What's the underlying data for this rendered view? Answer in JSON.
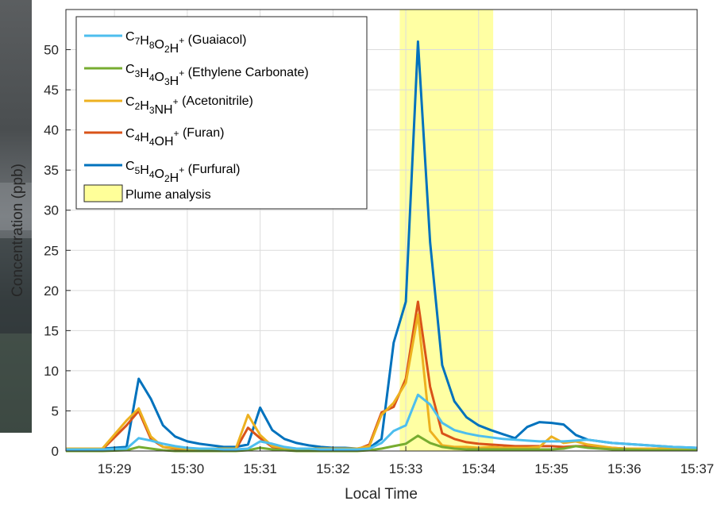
{
  "chart_data": {
    "type": "line",
    "title": "",
    "xlabel": "Local Time",
    "ylabel": "Concentration (ppb)",
    "xlim": [
      "15:28:20",
      "15:37:00"
    ],
    "ylim": [
      0,
      55
    ],
    "x_ticks": [
      "15:29",
      "15:30",
      "15:31",
      "15:32",
      "15:33",
      "15:34",
      "15:35",
      "15:36",
      "15:37"
    ],
    "y_ticks": [
      0,
      5,
      10,
      15,
      20,
      25,
      30,
      35,
      40,
      45,
      50
    ],
    "grid": true,
    "legend_position": "top-left",
    "shaded_region": {
      "label": "Plume analysis",
      "x_start": "15:32:55",
      "x_end": "15:34:12",
      "color": "#ffff99"
    },
    "x": [
      "15:28:20",
      "15:28:50",
      "15:29:10",
      "15:29:20",
      "15:29:30",
      "15:29:40",
      "15:29:50",
      "15:30:00",
      "15:30:10",
      "15:30:20",
      "15:30:30",
      "15:30:40",
      "15:30:50",
      "15:31:00",
      "15:31:10",
      "15:31:20",
      "15:31:30",
      "15:31:40",
      "15:31:50",
      "15:32:00",
      "15:32:10",
      "15:32:20",
      "15:32:30",
      "15:32:40",
      "15:32:50",
      "15:33:00",
      "15:33:10",
      "15:33:20",
      "15:33:30",
      "15:33:40",
      "15:33:50",
      "15:34:00",
      "15:34:10",
      "15:34:20",
      "15:34:30",
      "15:34:40",
      "15:34:50",
      "15:35:00",
      "15:35:10",
      "15:35:20",
      "15:35:30",
      "15:35:40",
      "15:35:50",
      "15:36:00",
      "15:36:20",
      "15:36:40",
      "15:37:00"
    ],
    "series": [
      {
        "name": "C7H8O2H+ (Guaiacol)",
        "formula": [
          [
            "C",
            ""
          ],
          [
            "7",
            "sub"
          ],
          [
            "H",
            ""
          ],
          [
            "8",
            "sub"
          ],
          [
            "O",
            ""
          ],
          [
            "2",
            "sub"
          ],
          [
            "H",
            ""
          ],
          [
            "+",
            "sup"
          ]
        ],
        "name_suffix": " (Guaiacol)",
        "color": "#4dbeee",
        "values": [
          0.2,
          0.2,
          0.3,
          1.6,
          1.3,
          0.9,
          0.6,
          0.4,
          0.3,
          0.3,
          0.2,
          0.2,
          0.3,
          1.2,
          0.9,
          0.5,
          0.3,
          0.3,
          0.2,
          0.2,
          0.2,
          0.2,
          0.3,
          1.0,
          2.5,
          3.2,
          7.0,
          5.8,
          3.5,
          2.6,
          2.2,
          1.9,
          1.7,
          1.5,
          1.4,
          1.3,
          1.2,
          1.2,
          1.2,
          1.3,
          1.4,
          1.2,
          1.0,
          0.9,
          0.7,
          0.5,
          0.4
        ]
      },
      {
        "name": "C3H4O3H+ (Ethylene Carbonate)",
        "formula": [
          [
            "C",
            ""
          ],
          [
            "3",
            "sub"
          ],
          [
            "H",
            ""
          ],
          [
            "4",
            "sub"
          ],
          [
            "O",
            ""
          ],
          [
            "3",
            "sub"
          ],
          [
            "H",
            ""
          ],
          [
            "+",
            "sup"
          ]
        ],
        "name_suffix": " (Ethylene Carbonate)",
        "color": "#77ac30",
        "values": [
          0.0,
          0.0,
          0.1,
          0.5,
          0.3,
          0.1,
          0.0,
          0.0,
          0.0,
          0.0,
          0.0,
          0.0,
          0.1,
          0.4,
          0.2,
          0.1,
          0.0,
          0.0,
          0.0,
          0.0,
          0.0,
          0.0,
          0.1,
          0.3,
          0.6,
          0.9,
          1.9,
          1.0,
          0.5,
          0.3,
          0.2,
          0.2,
          0.2,
          0.2,
          0.2,
          0.2,
          0.2,
          0.2,
          0.3,
          0.6,
          0.4,
          0.3,
          0.2,
          0.2,
          0.1,
          0.1,
          0.1
        ]
      },
      {
        "name": "C2H3NH+ (Acetonitrile)",
        "formula": [
          [
            "C",
            ""
          ],
          [
            "2",
            "sub"
          ],
          [
            "H",
            ""
          ],
          [
            "3",
            "sub"
          ],
          [
            "NH",
            ""
          ],
          [
            "+",
            "sup"
          ]
        ],
        "name_suffix": " (Acetonitrile)",
        "color": "#edb120",
        "values": [
          0.3,
          0.3,
          3.8,
          5.3,
          1.8,
          0.5,
          0.4,
          0.3,
          0.3,
          0.3,
          0.3,
          0.3,
          4.5,
          2.0,
          0.6,
          0.4,
          0.3,
          0.3,
          0.3,
          0.3,
          0.3,
          0.3,
          0.6,
          4.5,
          6.0,
          8.5,
          17.0,
          2.5,
          0.7,
          0.5,
          0.5,
          0.4,
          0.5,
          0.4,
          0.4,
          0.4,
          0.5,
          1.8,
          1.0,
          1.2,
          0.8,
          0.6,
          0.4,
          0.3,
          0.3,
          0.3,
          0.3
        ]
      },
      {
        "name": "C4H4OH+ (Furan)",
        "formula": [
          [
            "C",
            ""
          ],
          [
            "4",
            "sub"
          ],
          [
            "H",
            ""
          ],
          [
            "4",
            "sub"
          ],
          [
            "OH",
            ""
          ],
          [
            "+",
            "sup"
          ]
        ],
        "name_suffix": " (Furan)",
        "color": "#d95319",
        "values": [
          0.2,
          0.2,
          3.2,
          5.0,
          1.5,
          0.5,
          0.3,
          0.3,
          0.2,
          0.2,
          0.2,
          0.2,
          2.9,
          1.6,
          0.5,
          0.3,
          0.2,
          0.2,
          0.2,
          0.2,
          0.2,
          0.2,
          0.8,
          4.8,
          5.5,
          9.0,
          18.6,
          8.0,
          2.2,
          1.5,
          1.1,
          0.9,
          0.8,
          0.7,
          0.6,
          0.6,
          0.6,
          0.6,
          0.5,
          0.6,
          0.6,
          0.5,
          0.4,
          0.3,
          0.2,
          0.2,
          0.2
        ]
      },
      {
        "name": "C5H4O2H+ (Furfural)",
        "formula": [
          [
            "C",
            ""
          ],
          [
            "5",
            "sub"
          ],
          [
            "H",
            ""
          ],
          [
            "4",
            "sub"
          ],
          [
            "O",
            ""
          ],
          [
            "2",
            "sub"
          ],
          [
            "H",
            ""
          ],
          [
            "+",
            "sup"
          ]
        ],
        "name_suffix": " (Furfural)",
        "color": "#0072bd",
        "values": [
          0.3,
          0.3,
          0.5,
          9.0,
          6.5,
          3.2,
          1.8,
          1.2,
          0.9,
          0.7,
          0.5,
          0.5,
          0.8,
          5.4,
          2.6,
          1.5,
          1.0,
          0.7,
          0.5,
          0.4,
          0.4,
          0.3,
          0.4,
          1.5,
          13.5,
          18.6,
          51.0,
          26.0,
          10.7,
          6.2,
          4.2,
          3.2,
          2.6,
          2.1,
          1.6,
          3.0,
          3.6,
          3.5,
          3.3,
          2.0,
          1.4,
          1.2,
          1.0,
          0.9,
          0.7,
          0.5,
          0.4
        ]
      }
    ]
  }
}
